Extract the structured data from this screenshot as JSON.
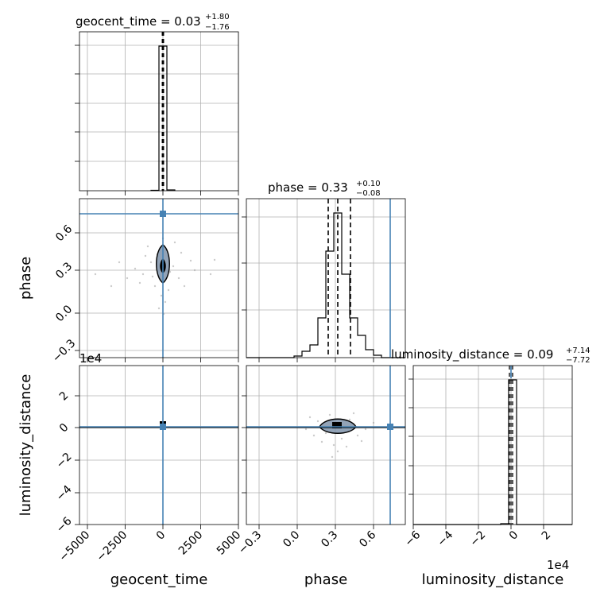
{
  "chart_data": [
    {
      "type": "histogram",
      "panel": "geocent_time-1d",
      "title": {
        "param": "geocent_time",
        "value": "0.03",
        "upper": "+1.80",
        "lower": "−1.76"
      },
      "x_range": [
        -6000,
        6000
      ],
      "bins": [
        {
          "x0": -1000,
          "x1": -500,
          "y": 0.002
        },
        {
          "x0": -500,
          "x1": 0,
          "y": 0.98
        },
        {
          "x0": 0,
          "x1": 500,
          "y": 0.98
        },
        {
          "x0": 500,
          "x1": 1000,
          "y": 0.005
        }
      ],
      "quantile_lines": [
        -1.73,
        0.03,
        1.83
      ],
      "grid": true
    },
    {
      "type": "scatter",
      "panel": "phase-vs-geocent_time",
      "x_range": [
        -6000,
        6000
      ],
      "y_range": [
        -0.42,
        0.84
      ],
      "y_ticks": [
        "−0.3",
        "0.0",
        "0.3",
        "0.6"
      ],
      "ylabel": "phase",
      "truth": {
        "x": 0,
        "y": 0.74
      },
      "contour_center": {
        "x": 0,
        "y": 0.33
      },
      "grid": true
    },
    {
      "type": "histogram",
      "panel": "phase-1d",
      "title": {
        "param": "phase",
        "value": "0.33",
        "upper": "+0.10",
        "lower": "−0.08"
      },
      "x_range": [
        -0.42,
        0.84
      ],
      "bins": [
        {
          "x0": -0.03,
          "x1": 0.0,
          "y": 0.01
        },
        {
          "x0": 0.0,
          "x1": 0.06,
          "y": 0.03
        },
        {
          "x0": 0.06,
          "x1": 0.11,
          "y": 0.07
        },
        {
          "x0": 0.11,
          "x1": 0.16,
          "y": 0.15
        },
        {
          "x0": 0.16,
          "x1": 0.22,
          "y": 0.27
        },
        {
          "x0": 0.22,
          "x1": 0.28,
          "y": 0.73
        },
        {
          "x0": 0.28,
          "x1": 0.34,
          "y": 0.97
        },
        {
          "x0": 0.34,
          "x1": 0.4,
          "y": 0.56
        },
        {
          "x0": 0.4,
          "x1": 0.46,
          "y": 0.29
        },
        {
          "x0": 0.46,
          "x1": 0.53,
          "y": 0.14
        },
        {
          "x0": 0.53,
          "x1": 0.59,
          "y": 0.06
        },
        {
          "x0": 0.59,
          "x1": 0.65,
          "y": 0.02
        },
        {
          "x0": 0.65,
          "x1": 0.71,
          "y": 0.01
        }
      ],
      "quantile_lines": [
        0.25,
        0.33,
        0.43
      ],
      "truth": 0.74,
      "grid": true
    },
    {
      "type": "scatter",
      "panel": "luminosity_distance-vs-geocent_time",
      "x_range": [
        -6000,
        6000
      ],
      "y_range": [
        -60000,
        40000
      ],
      "y_ticks": [
        "−6",
        "−4",
        "−2",
        "0",
        "2"
      ],
      "ylabel": "luminosity_distance",
      "y_offset_text": "1e4",
      "x_ticks": [
        "−5000",
        "−2500",
        "0",
        "2500",
        "5000"
      ],
      "xlabel": "geocent_time",
      "truth": {
        "x": 0,
        "y": 0
      },
      "grid": true
    },
    {
      "type": "scatter",
      "panel": "luminosity_distance-vs-phase",
      "x_range": [
        -0.42,
        0.84
      ],
      "y_range": [
        -60000,
        40000
      ],
      "x_ticks": [
        "−0.3",
        "0.0",
        "0.3",
        "0.6"
      ],
      "xlabel": "phase",
      "truth": {
        "x": 0.74,
        "y": 0
      },
      "grid": true
    },
    {
      "type": "histogram",
      "panel": "luminosity_distance-1d",
      "title": {
        "param": "luminosity_distance",
        "value": "0.09",
        "upper": "+7.14",
        "lower": "−7.72"
      },
      "x_range": [
        -60000,
        40000
      ],
      "x_ticks": [
        "−6",
        "−4",
        "−2",
        "0",
        "2"
      ],
      "x_offset_text": "1e4",
      "xlabel": "luminosity_distance",
      "bins": [
        {
          "x0": -2000,
          "x1": 0,
          "y": 0.98
        },
        {
          "x0": 0,
          "x1": 2000,
          "y": 0.98
        }
      ],
      "quantile_lines": [
        -7.63,
        0.09,
        7.23
      ],
      "grid": true
    }
  ]
}
